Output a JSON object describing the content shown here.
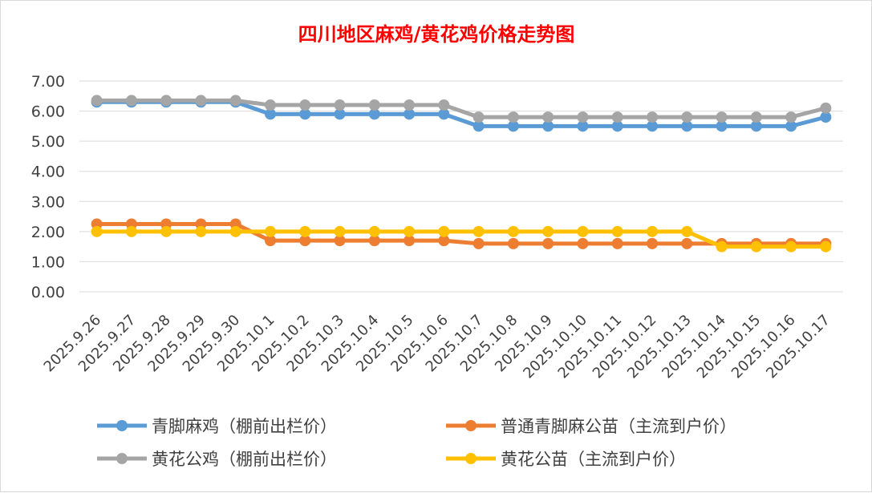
{
  "chart_data": {
    "type": "line",
    "title": "四川地区麻鸡/黄花鸡价格走势图",
    "x": [
      "2025.9.26",
      "2025.9.27",
      "2025.9.28",
      "2025.9.29",
      "2025.9.30",
      "2025.10.1",
      "2025.10.2",
      "2025.10.3",
      "2025.10.4",
      "2025.10.5",
      "2025.10.6",
      "2025.10.7",
      "2025.10.8",
      "2025.10.9",
      "2025.10.10",
      "2025.10.11",
      "2025.10.12",
      "2025.10.13",
      "2025.10.14",
      "2025.10.15",
      "2025.10.16",
      "2025.10.17"
    ],
    "ylim": [
      0,
      7
    ],
    "yticks": [
      "0.00",
      "1.00",
      "2.00",
      "3.00",
      "4.00",
      "5.00",
      "6.00",
      "7.00"
    ],
    "grid": true,
    "legend_position": "bottom",
    "series": [
      {
        "name": "青脚麻鸡（棚前出栏价）",
        "color": "#5b9bd5",
        "values": [
          6.3,
          6.3,
          6.3,
          6.3,
          6.3,
          5.9,
          5.9,
          5.9,
          5.9,
          5.9,
          5.9,
          5.5,
          5.5,
          5.5,
          5.5,
          5.5,
          5.5,
          5.5,
          5.5,
          5.5,
          5.5,
          5.8
        ]
      },
      {
        "name": "普通青脚麻公苗（主流到户价）",
        "color": "#ed7d31",
        "values": [
          2.25,
          2.25,
          2.25,
          2.25,
          2.25,
          1.7,
          1.7,
          1.7,
          1.7,
          1.7,
          1.7,
          1.6,
          1.6,
          1.6,
          1.6,
          1.6,
          1.6,
          1.6,
          1.6,
          1.6,
          1.6,
          1.6
        ]
      },
      {
        "name": "黄花公鸡（棚前出栏价）",
        "color": "#a5a5a5",
        "values": [
          6.35,
          6.35,
          6.35,
          6.35,
          6.35,
          6.2,
          6.2,
          6.2,
          6.2,
          6.2,
          6.2,
          5.8,
          5.8,
          5.8,
          5.8,
          5.8,
          5.8,
          5.8,
          5.8,
          5.8,
          5.8,
          6.1
        ]
      },
      {
        "name": "黄花公苗（主流到户价）",
        "color": "#ffc000",
        "values": [
          2.0,
          2.0,
          2.0,
          2.0,
          2.0,
          2.0,
          2.0,
          2.0,
          2.0,
          2.0,
          2.0,
          2.0,
          2.0,
          2.0,
          2.0,
          2.0,
          2.0,
          2.0,
          1.5,
          1.5,
          1.5,
          1.5
        ]
      }
    ]
  }
}
